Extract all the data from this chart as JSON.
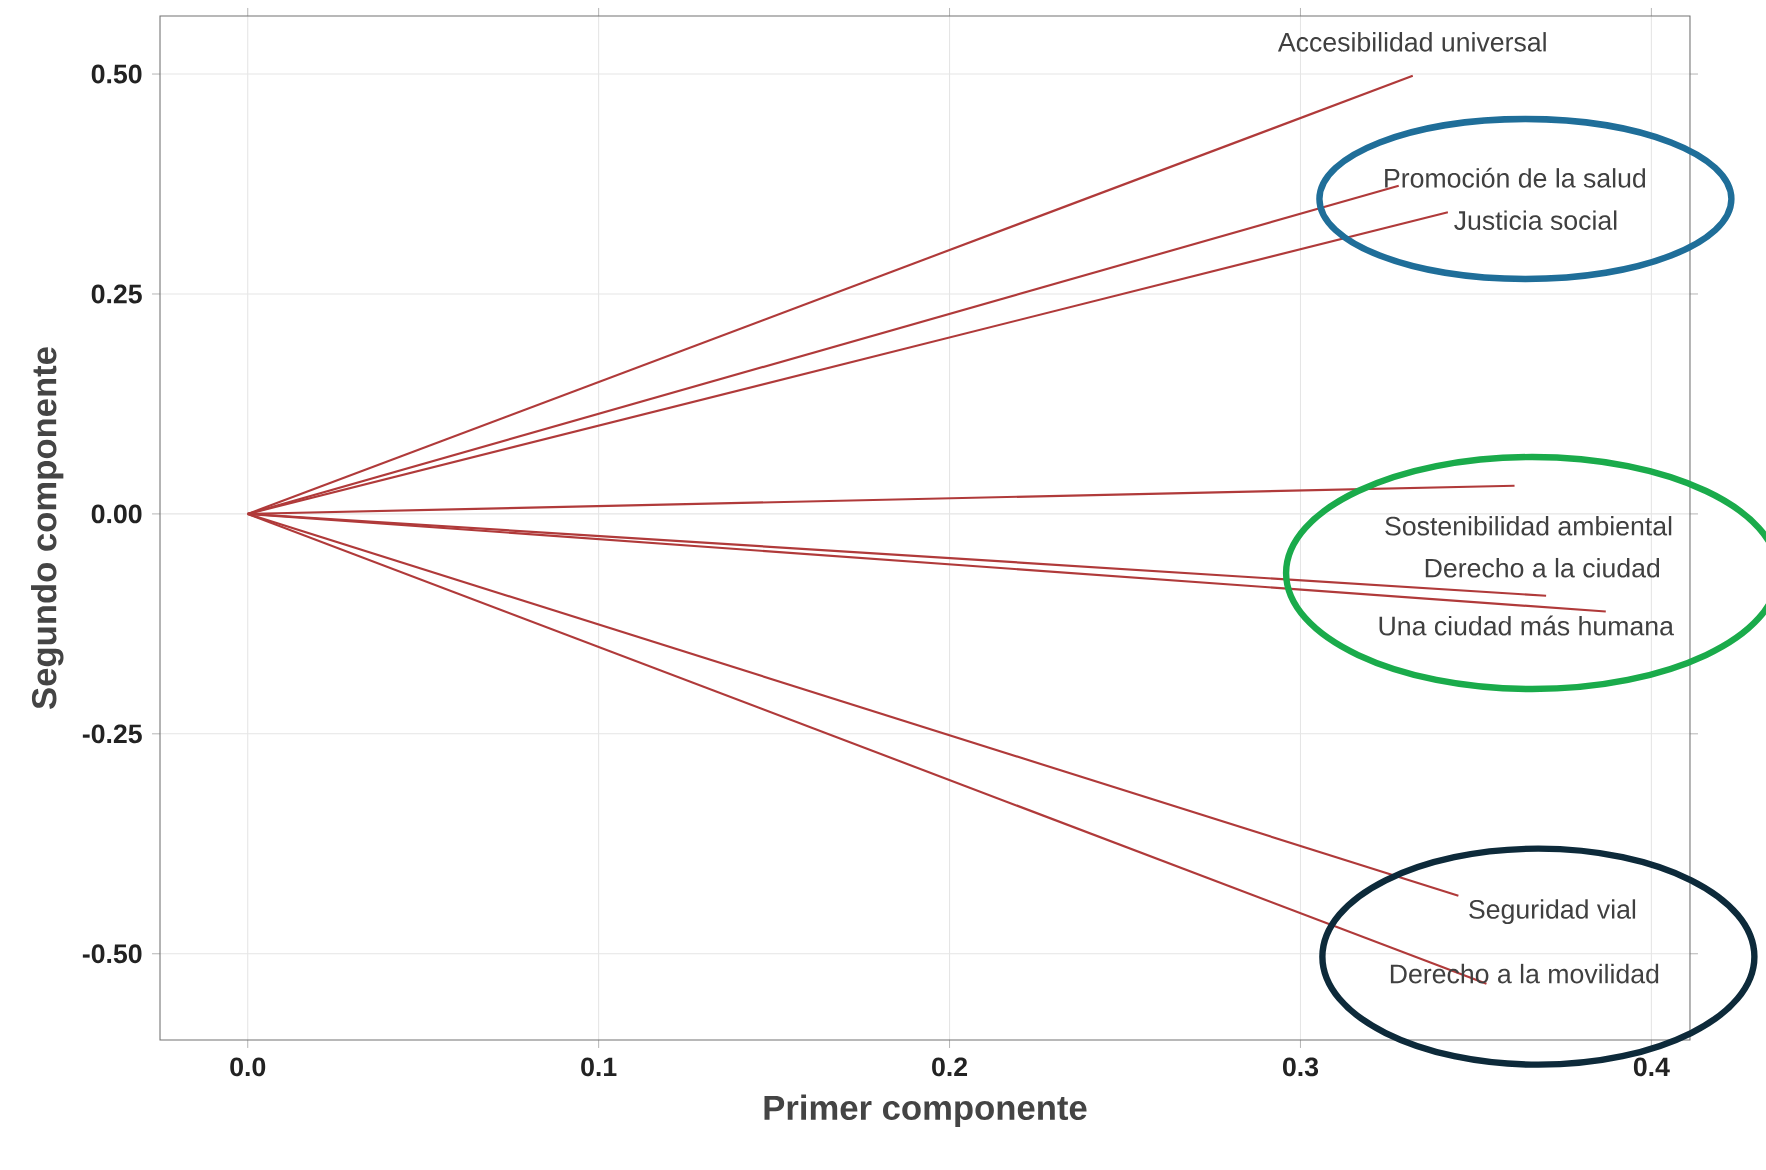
{
  "chart_data": {
    "type": "line",
    "xlabel": "Primer componente",
    "ylabel": "Segundo componente",
    "xlim": [
      -0.025,
      0.411
    ],
    "ylim": [
      -0.598,
      0.566
    ],
    "xticks": [
      {
        "value": 0,
        "label": "0.0"
      },
      {
        "value": 0.1,
        "label": "0.1"
      },
      {
        "value": 0.2,
        "label": "0.2"
      },
      {
        "value": 0.3,
        "label": "0.3"
      },
      {
        "value": 0.4,
        "label": "0.4"
      }
    ],
    "yticks": [
      {
        "value": -0.5,
        "label": "-0.50"
      },
      {
        "value": -0.25,
        "label": "-0.25"
      },
      {
        "value": 0,
        "label": "0.00"
      },
      {
        "value": 0.25,
        "label": "0.25"
      },
      {
        "value": 0.5,
        "label": "0.50"
      }
    ],
    "grid": true,
    "series": [
      {
        "name": "Accesibilidad universal",
        "color": "#b03a3a",
        "x": [
          0,
          0.332
        ],
        "values": [
          0,
          0.498
        ]
      },
      {
        "name": "Promoción de la salud",
        "color": "#b03a3a",
        "x": [
          0,
          0.328
        ],
        "values": [
          0,
          0.373
        ]
      },
      {
        "name": "Justicia social",
        "color": "#b03a3a",
        "x": [
          0,
          0.342
        ],
        "values": [
          0,
          0.343
        ]
      },
      {
        "name": "Sostenibilidad ambiental",
        "color": "#b03a3a",
        "x": [
          0,
          0.361
        ],
        "values": [
          0,
          0.032
        ]
      },
      {
        "name": "Derecho a la ciudad",
        "color": "#b03a3a",
        "x": [
          0,
          0.37
        ],
        "values": [
          0,
          -0.093
        ]
      },
      {
        "name": "Una ciudad más humana",
        "color": "#b03a3a",
        "x": [
          0,
          0.387
        ],
        "values": [
          0,
          -0.111
        ]
      },
      {
        "name": "Seguridad vial",
        "color": "#b03a3a",
        "x": [
          0,
          0.345
        ],
        "values": [
          0,
          -0.434
        ]
      },
      {
        "name": "Derecho a la movilidad",
        "color": "#b03a3a",
        "x": [
          0,
          0.353
        ],
        "values": [
          0,
          -0.534
        ]
      }
    ]
  }
}
